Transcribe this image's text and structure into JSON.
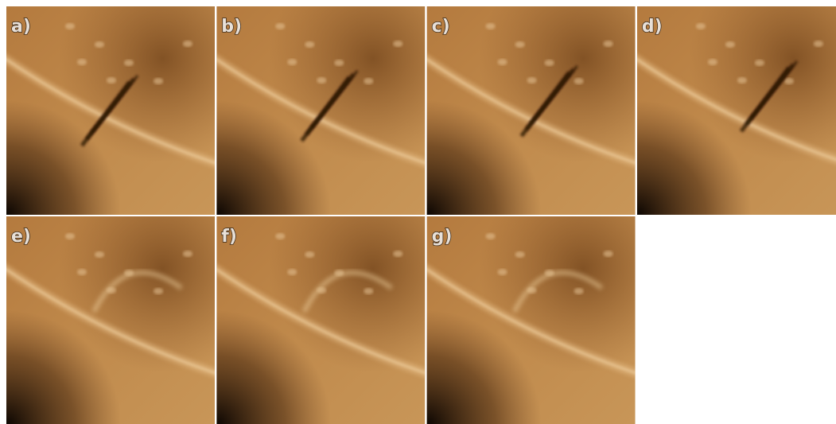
{
  "panels": [
    {
      "label": "a)"
    },
    {
      "label": "b)"
    },
    {
      "label": "c)"
    },
    {
      "label": "d)"
    },
    {
      "label": "e)"
    },
    {
      "label": "f)"
    },
    {
      "label": "g)"
    }
  ]
}
